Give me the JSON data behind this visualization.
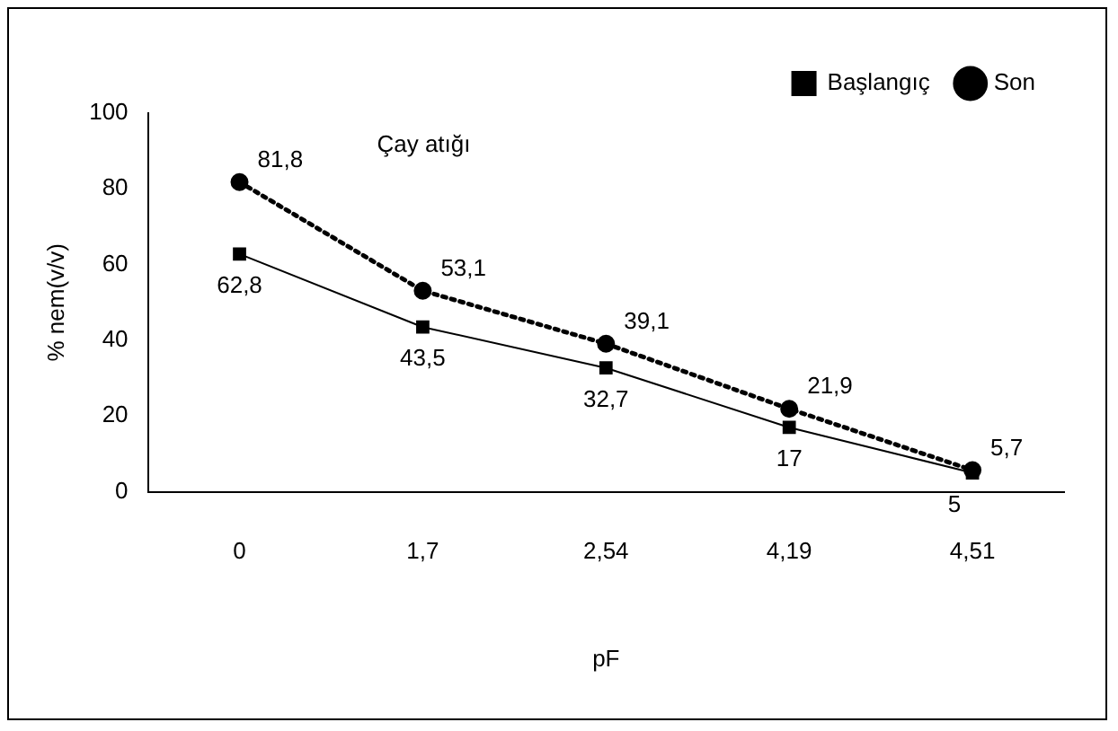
{
  "chart_data": {
    "type": "line",
    "title": "Çay atığı",
    "xlabel": "pF",
    "ylabel": "% nem(v/v)",
    "categories": [
      "0",
      "1,7",
      "2,54",
      "4,19",
      "4,51"
    ],
    "series": [
      {
        "name": "Başlangıç",
        "color": "#000000",
        "values": [
          62.8,
          43.5,
          32.7,
          17,
          5
        ],
        "marker": "square",
        "line_style": "solid",
        "value_labels": [
          "62,8",
          "43,5",
          "32,7",
          "17",
          "5"
        ]
      },
      {
        "name": "Son",
        "color": "#000000",
        "values": [
          81.8,
          53.1,
          39.1,
          21.9,
          5.7
        ],
        "marker": "circle",
        "line_style": "dotted",
        "value_labels": [
          "81,8",
          "53,1",
          "39,1",
          "21,9",
          "5,7"
        ]
      }
    ],
    "ylim": [
      0,
      100
    ],
    "yticks": [
      0,
      20,
      40,
      60,
      80,
      100
    ],
    "grid": false,
    "legend": "top right"
  }
}
